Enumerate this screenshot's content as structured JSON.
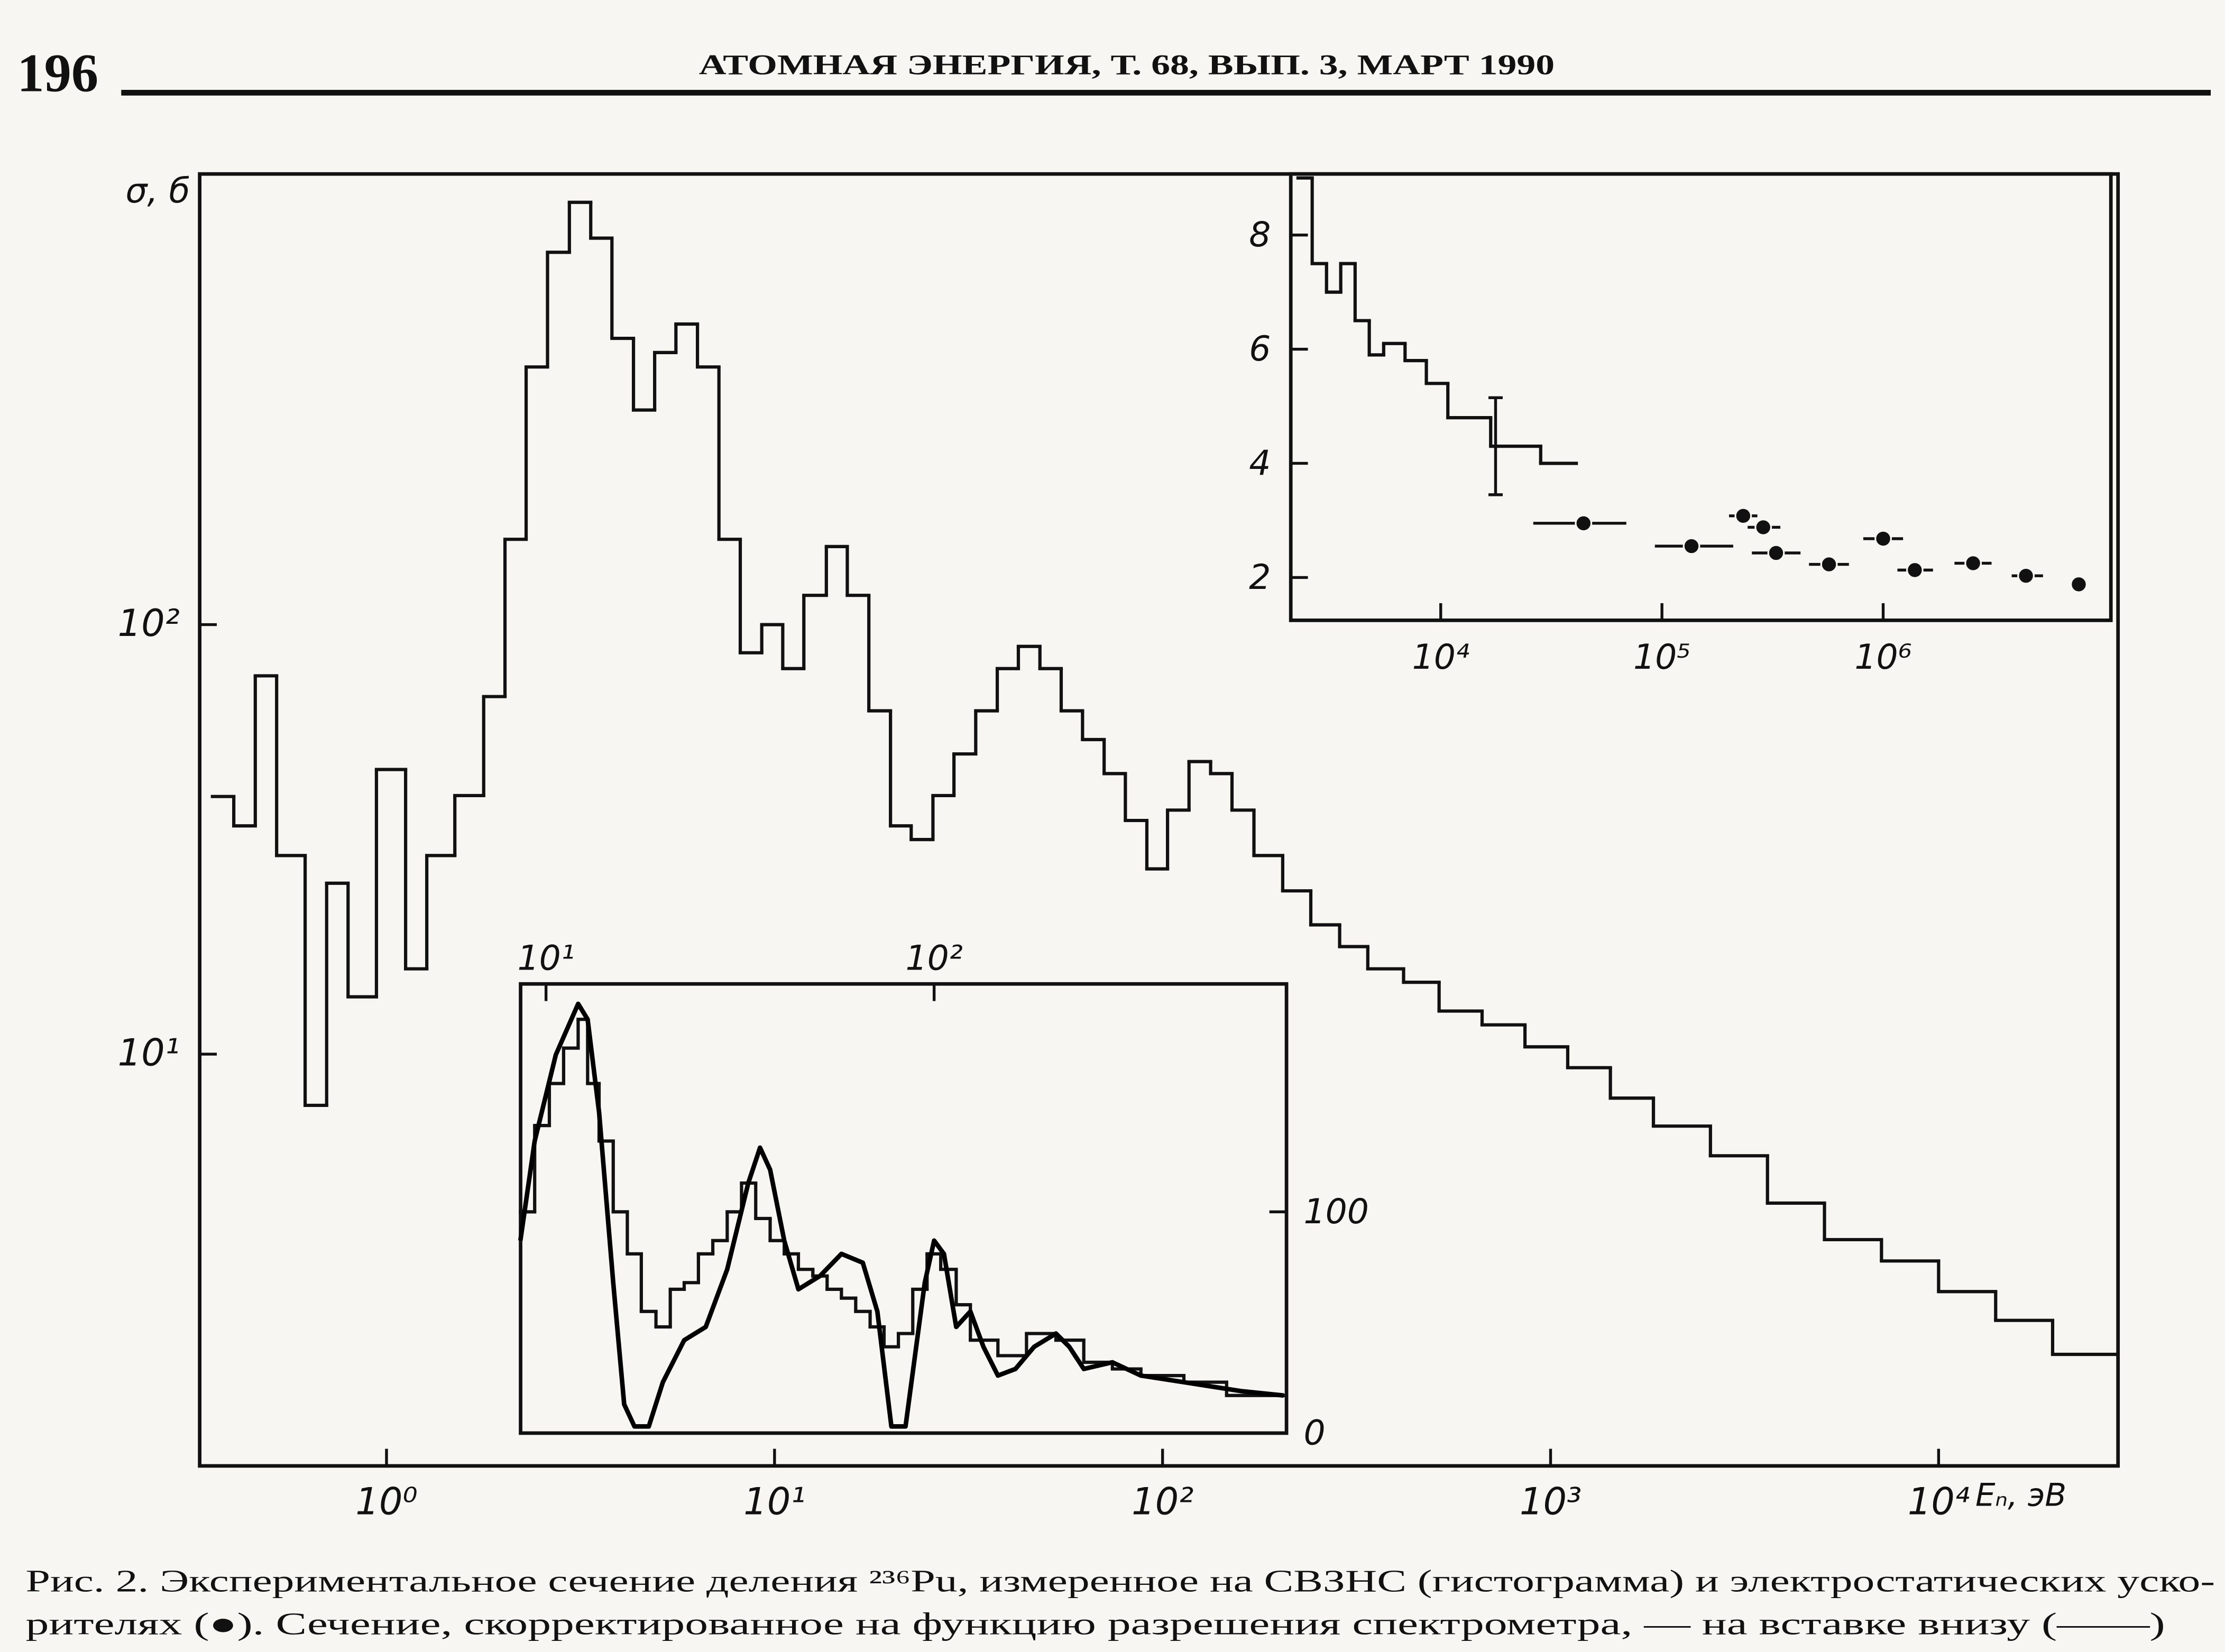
{
  "page": {
    "number": "196",
    "running_head": "АТОМНАЯ ЭНЕРГИЯ, Т. 68, ВЫП. 3, МАРТ 1990",
    "caption": [
      "Рис. 2. Экспериментальное сечение деления ²³⁶Pu, измеренное на СВЗНС (гистограмма) и электростатических уско-",
      "рителях (●). Сечение, скорректированное на функцию разрешения спектрометра, — на вставке внизу (——)"
    ]
  },
  "chart_data": [
    {
      "type": "histogram",
      "ylabel": "σ, б",
      "xlabel": "Eₙ, эВ",
      "xscale": "log",
      "yscale": "log",
      "color": "#111111",
      "xlim": [
        0.33,
        29000
      ],
      "ylim": [
        1.1,
        1120
      ],
      "xticks": [
        {
          "value": 1,
          "label": "10⁰"
        },
        {
          "value": 10,
          "label": "10¹"
        },
        {
          "value": 100,
          "label": "10²"
        },
        {
          "value": 1000,
          "label": "10³"
        },
        {
          "value": 10000,
          "label": "10⁴"
        }
      ],
      "yticks": [
        {
          "value": 10,
          "label": "10¹"
        },
        {
          "value": 100,
          "label": "10²"
        }
      ],
      "bins": [
        0.356,
        0.404,
        0.459,
        0.521,
        0.617,
        0.701,
        0.796,
        0.942,
        1.12,
        1.27,
        1.5,
        1.78,
        2.02,
        2.29,
        2.6,
        2.96,
        3.36,
        3.81,
        4.33,
        4.91,
        5.57,
        6.33,
        7.19,
        8.16,
        9.27,
        10.5,
        11.9,
        13.6,
        15.4,
        17.5,
        19.9,
        22.5,
        25.6,
        29.0,
        33.0,
        37.5,
        42.5,
        48.3,
        54.8,
        62.2,
        70.7,
        80.2,
        91.1,
        103,
        117,
        133,
        151,
        172,
        204,
        241,
        286,
        338,
        418,
        516,
        666,
        859,
        1107,
        1426,
        1841,
        2582,
        3622,
        5080,
        7125,
        10000,
        14030,
        19670,
        28840
      ],
      "values": [
        39.8,
        34,
        76,
        29,
        7.6,
        25,
        13.6,
        46,
        15.8,
        29,
        40,
        68,
        158,
        398,
        736,
        962,
        794,
        464,
        316,
        430,
        501,
        398,
        158,
        86,
        100,
        79,
        117,
        152,
        117,
        63,
        34,
        31.6,
        40,
        50,
        63,
        79,
        89,
        79,
        63,
        54,
        45,
        35,
        27,
        37,
        48,
        45,
        37,
        29,
        24,
        20,
        17.8,
        15.8,
        14.7,
        12.6,
        11.7,
        10.4,
        9.3,
        7.9,
        6.8,
        5.8,
        4.5,
        3.7,
        3.3,
        2.8,
        2.4,
        2.0
      ]
    },
    {
      "type": "combo",
      "xscale": "log",
      "yscale": "linear",
      "xlim": [
        2100,
        10700000
      ],
      "ylim": [
        1.25,
        9.07
      ],
      "xticks": [
        {
          "value": 10000,
          "label": "10⁴"
        },
        {
          "value": 100000,
          "label": "10⁵"
        },
        {
          "value": 1000000,
          "label": "10⁶"
        }
      ],
      "yticks": [
        2,
        4,
        6,
        8
      ],
      "series": [
        {
          "type": "histogram",
          "color": "#111111",
          "bins": [
            2265,
            2624,
            3046,
            3532,
            4102,
            4753,
            5521,
            6898,
            8610,
            10770,
            16820,
            28300,
            41000
          ],
          "values": [
            9.0,
            7.5,
            7.0,
            7.5,
            6.5,
            5.9,
            6.1,
            5.8,
            5.4,
            4.8,
            4.3,
            4.0
          ],
          "error_bar": {
            "x": 17700,
            "value": 4.3,
            "error": 0.85
          }
        },
        {
          "type": "scatter",
          "color": "#111111",
          "x": [
            44200,
            136000,
            233000,
            287000,
            328000,
            569000,
            1000000,
            1390000,
            2550000,
            4420000,
            7660000
          ],
          "values": [
            2.95,
            2.55,
            3.08,
            2.88,
            2.43,
            2.23,
            2.68,
            2.13,
            2.25,
            2.03,
            1.88
          ],
          "xlow": [
            26200,
            92900,
            201000,
            244000,
            255000,
            462000,
            813000,
            1160000,
            2100000,
            3810000,
            null
          ],
          "xhigh": [
            69000,
            210000,
            270000,
            343000,
            423000,
            700000,
            1230000,
            1680000,
            3090000,
            5280000,
            null
          ]
        }
      ]
    },
    {
      "type": "combo",
      "xscale": "log",
      "yscale": "linear",
      "xlim": [
        8.6,
        809
      ],
      "ylim": [
        0,
        203
      ],
      "xticks": [
        {
          "value": 10,
          "label": "10¹"
        },
        {
          "value": 100,
          "label": "10²"
        }
      ],
      "yticks": [
        0,
        100
      ],
      "series": [
        {
          "type": "histogram",
          "color": "#111111",
          "bins": [
            8.59,
            9.35,
            10.2,
            11.1,
            12.1,
            12.8,
            13.7,
            14.9,
            16.2,
            17.6,
            19.2,
            20.9,
            22.7,
            24.7,
            26.9,
            29.3,
            31.9,
            34.7,
            37.8,
            41.1,
            44.7,
            48.7,
            53.0,
            57.7,
            62.8,
            68.4,
            74.3,
            80.9,
            88.1,
            95.9,
            104,
            114,
            124,
            146,
            173,
            206,
            243,
            288,
            341,
            440,
            567,
            796
          ],
          "values": [
            100,
            139,
            158,
            174,
            187,
            158,
            132,
            100,
            81,
            55,
            48,
            65,
            68,
            81,
            87,
            100,
            113,
            97,
            87,
            81,
            74,
            71,
            65,
            61,
            55,
            48,
            39,
            45,
            65,
            81,
            74,
            58,
            42,
            35,
            45,
            42,
            32,
            29,
            26,
            23,
            17
          ]
        },
        {
          "type": "line",
          "color": "#000000",
          "x": [
            8.59,
            9.35,
            10.6,
            12.1,
            12.8,
            13.7,
            14.9,
            15.9,
            16.9,
            18.4,
            20.0,
            22.7,
            25.8,
            29.3,
            33.2,
            35.6,
            37.8,
            41.1,
            44.7,
            50.8,
            57.7,
            65.5,
            71.4,
            77.6,
            84.4,
            94.6,
            100,
            106,
            114,
            124,
            134,
            146,
            162,
            181,
            206,
            223,
            243,
            288,
            341,
            440,
            617,
            796
          ],
          "values": [
            87,
            132,
            171,
            194,
            187,
            145,
            68,
            13,
            3,
            3,
            23,
            42,
            48,
            74,
            113,
            129,
            119,
            87,
            65,
            71,
            81,
            77,
            55,
            3,
            3,
            68,
            87,
            81,
            48,
            55,
            39,
            26,
            29,
            39,
            45,
            39,
            29,
            32,
            26,
            23,
            19,
            17
          ]
        }
      ]
    }
  ]
}
